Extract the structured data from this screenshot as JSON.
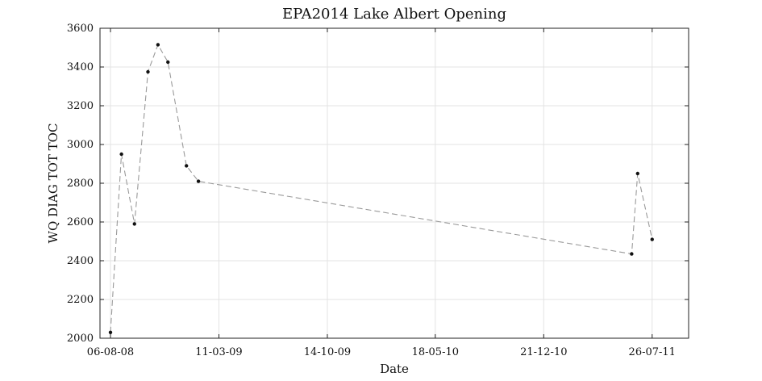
{
  "chart_data": {
    "type": "line",
    "title": "EPA2014 Lake Albert Opening",
    "xlabel": "Date",
    "ylabel": "WQ DIAG TOT TOC",
    "xlim": [
      "2008-07-16",
      "2011-10-07"
    ],
    "ylim": [
      2000,
      3600
    ],
    "x_ticks": [
      {
        "date": "2008-08-06",
        "label": "06-08-08"
      },
      {
        "date": "2009-03-11",
        "label": "11-03-09"
      },
      {
        "date": "2009-10-14",
        "label": "14-10-09"
      },
      {
        "date": "2010-05-18",
        "label": "18-05-10"
      },
      {
        "date": "2010-12-21",
        "label": "21-12-10"
      },
      {
        "date": "2011-07-26",
        "label": "26-07-11"
      }
    ],
    "y_ticks": [
      2000,
      2200,
      2400,
      2600,
      2800,
      3000,
      3200,
      3400,
      3600
    ],
    "grid": true,
    "series": [
      {
        "line_color": "#9a9a9a",
        "marker_color": "#111111",
        "line_style": "dashed",
        "points": [
          {
            "x": "2008-08-06",
            "y": 2030
          },
          {
            "x": "2008-08-28",
            "y": 2950
          },
          {
            "x": "2008-09-23",
            "y": 2590
          },
          {
            "x": "2008-10-20",
            "y": 3375
          },
          {
            "x": "2008-11-09",
            "y": 3515
          },
          {
            "x": "2008-11-29",
            "y": 3425
          },
          {
            "x": "2009-01-05",
            "y": 2890
          },
          {
            "x": "2009-01-29",
            "y": 2810
          },
          {
            "x": "2011-06-15",
            "y": 2435
          },
          {
            "x": "2011-06-27",
            "y": 2850
          },
          {
            "x": "2011-07-26",
            "y": 2510
          }
        ]
      }
    ]
  }
}
